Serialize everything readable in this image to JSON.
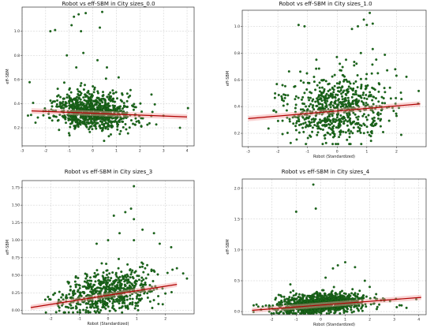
{
  "chart_data": [
    {
      "type": "scatter",
      "title": "Robot vs eff-SBM in City sizes_0.0",
      "xlabel": "",
      "ylabel": "eff-SBM",
      "xlim": [
        -3,
        4.3
      ],
      "ylim": [
        0.05,
        1.2
      ],
      "xticks": [
        "-3",
        "-2",
        "-1",
        "0",
        "1",
        "2",
        "3",
        "4"
      ],
      "xtick_values": [
        -3,
        -2,
        -1,
        0,
        1,
        2,
        3,
        4
      ],
      "yticks": [
        "0.2",
        "0.4",
        "0.6",
        "0.8",
        "1.0"
      ],
      "ytick_values": [
        0.2,
        0.4,
        0.6,
        0.8,
        1.0
      ],
      "cloud": {
        "n": 900,
        "x_mean": 0.0,
        "x_sd": 0.85,
        "y_center": 0.31,
        "y_sd": 0.07,
        "slope": -0.01
      },
      "outliers": [
        [
          -1.8,
          1.0
        ],
        [
          -1.6,
          1.01
        ],
        [
          -0.9,
          1.05
        ],
        [
          -0.8,
          1.12
        ],
        [
          -0.6,
          1.14
        ],
        [
          -0.5,
          1.0
        ],
        [
          -0.3,
          1.15
        ],
        [
          0.4,
          1.16
        ],
        [
          0.3,
          1.03
        ],
        [
          -1.1,
          0.8
        ],
        [
          -0.4,
          0.82
        ],
        [
          0.2,
          0.76
        ],
        [
          0.6,
          0.7
        ],
        [
          -0.7,
          0.7
        ],
        [
          3.0,
          0.3
        ],
        [
          3.7,
          0.2
        ]
      ],
      "fit": {
        "x": [
          -2.6,
          4.0
        ],
        "y": [
          0.34,
          0.29
        ]
      },
      "grid": true,
      "marker_color": "#1a6b1a",
      "fit_color": "#b00000"
    },
    {
      "type": "scatter",
      "title": "Robot vs eff-SBM in City sizes_1.0",
      "xlabel": "Robot (Standardized)",
      "ylabel": "eff-SBM",
      "xlim": [
        -3.2,
        3.0
      ],
      "ylim": [
        0.1,
        1.12
      ],
      "xticks": [
        "-3",
        "-2",
        "-1",
        "0",
        "1",
        "2"
      ],
      "xtick_values": [
        -3,
        -2,
        -1,
        0,
        1,
        2
      ],
      "yticks": [
        "0.2",
        "0.4",
        "0.6",
        "0.8",
        "1.0"
      ],
      "ytick_values": [
        0.2,
        0.4,
        0.6,
        0.8,
        1.0
      ],
      "cloud": {
        "n": 700,
        "x_mean": 0.0,
        "x_sd": 0.9,
        "y_center": 0.35,
        "y_sd": 0.11,
        "slope": 0.018
      },
      "outliers": [
        [
          -1.3,
          1.01
        ],
        [
          -1.1,
          1.0
        ],
        [
          0.7,
          1.0
        ],
        [
          0.9,
          1.05
        ],
        [
          1.0,
          1.01
        ],
        [
          1.1,
          1.1
        ],
        [
          1.2,
          1.02
        ],
        [
          0.5,
          0.98
        ],
        [
          0.8,
          0.8
        ],
        [
          1.2,
          0.83
        ],
        [
          -0.7,
          0.75
        ],
        [
          0.3,
          0.75
        ]
      ],
      "fit": {
        "x": [
          -3.0,
          2.8
        ],
        "y": [
          0.31,
          0.42
        ]
      },
      "grid": true,
      "marker_color": "#1a6b1a",
      "fit_color": "#b00000"
    },
    {
      "type": "scatter",
      "title": "Robot vs eff-SBM in City sizes_3",
      "xlabel": "Robot (Standardized)",
      "ylabel": "eff-SBM",
      "xlim": [
        -3.0,
        3.0
      ],
      "ylim": [
        -0.05,
        1.85
      ],
      "xticks": [
        "-2",
        "-1",
        "0",
        "1",
        "2"
      ],
      "xtick_values": [
        -2,
        -1,
        0,
        1,
        2
      ],
      "yticks": [
        "0.00",
        "0.25",
        "0.50",
        "0.75",
        "1.00",
        "1.25",
        "1.50",
        "1.75"
      ],
      "ytick_values": [
        0,
        0.25,
        0.5,
        0.75,
        1.0,
        1.25,
        1.5,
        1.75
      ],
      "cloud": {
        "n": 650,
        "x_mean": 0.0,
        "x_sd": 0.85,
        "y_center": 0.2,
        "y_sd": 0.13,
        "slope": 0.06
      },
      "outliers": [
        [
          0.9,
          1.77
        ],
        [
          0.8,
          1.45
        ],
        [
          0.6,
          1.4
        ],
        [
          0.2,
          1.35
        ],
        [
          0.9,
          1.3
        ],
        [
          0.4,
          1.1
        ],
        [
          1.2,
          1.15
        ],
        [
          0.0,
          1.0
        ],
        [
          1.6,
          1.1
        ],
        [
          0.9,
          1.0
        ],
        [
          2.2,
          0.9
        ],
        [
          2.4,
          0.6
        ],
        [
          -0.4,
          0.95
        ],
        [
          1.8,
          0.95
        ]
      ],
      "fit": {
        "x": [
          -2.7,
          2.4
        ],
        "y": [
          0.04,
          0.37
        ]
      },
      "grid": true,
      "marker_color": "#1a6b1a",
      "fit_color": "#b00000"
    },
    {
      "type": "scatter",
      "title": "Robot vs eff-SBM in City sizes_4",
      "xlabel": "Robot (Standardized)",
      "ylabel": "eff-SBM",
      "xlim": [
        -3.2,
        4.3
      ],
      "ylim": [
        -0.05,
        2.15
      ],
      "xticks": [
        "-2",
        "-1",
        "0",
        "1",
        "2",
        "3",
        "4"
      ],
      "xtick_values": [
        -2,
        -1,
        0,
        1,
        2,
        3,
        4
      ],
      "yticks": [
        "0.0",
        "0.5",
        "1.0",
        "1.5",
        "2.0"
      ],
      "ytick_values": [
        0,
        0.5,
        1.0,
        1.5,
        2.0
      ],
      "cloud": {
        "n": 1100,
        "x_mean": 0.0,
        "x_sd": 0.9,
        "y_center": 0.1,
        "y_sd": 0.07,
        "slope": 0.02
      },
      "outliers": [
        [
          -0.3,
          2.06
        ],
        [
          -0.2,
          1.67
        ],
        [
          -1.0,
          1.62
        ],
        [
          0.7,
          0.75
        ],
        [
          0.5,
          0.7
        ],
        [
          1.0,
          0.8
        ],
        [
          1.4,
          0.72
        ],
        [
          0.2,
          0.55
        ],
        [
          1.8,
          0.5
        ],
        [
          2.0,
          0.4
        ],
        [
          2.6,
          0.2
        ],
        [
          3.3,
          0.1
        ],
        [
          3.5,
          0.06
        ],
        [
          3.9,
          0.2
        ]
      ],
      "fit": {
        "x": [
          -2.8,
          4.1
        ],
        "y": [
          0.02,
          0.23
        ]
      },
      "grid": true,
      "marker_color": "#1a6b1a",
      "fit_color": "#b00000"
    }
  ]
}
